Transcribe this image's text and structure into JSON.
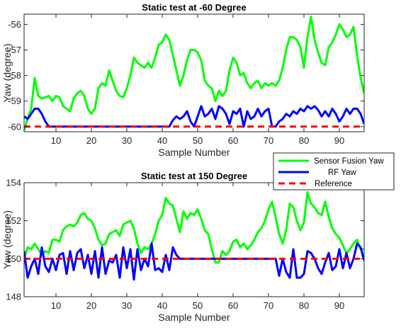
{
  "chart_data": [
    {
      "type": "line",
      "title": "Static test at -60 Degree",
      "xlabel": "Sample Number",
      "ylabel": "Yaw (degree)",
      "xlim": [
        1,
        97
      ],
      "ylim": [
        -60.2,
        -55.6
      ],
      "xticks": [
        10,
        20,
        30,
        40,
        50,
        60,
        70,
        80,
        90
      ],
      "yticks": [
        -60,
        -59,
        -58,
        -57,
        -56
      ],
      "grid": false,
      "series": [
        {
          "name": "Sensor Fusion Yaw",
          "color": "#00ff00",
          "x": [
            1,
            2,
            3,
            4,
            5,
            6,
            7,
            8,
            9,
            10,
            11,
            12,
            13,
            14,
            15,
            16,
            17,
            18,
            19,
            20,
            21,
            22,
            23,
            24,
            25,
            26,
            27,
            28,
            29,
            30,
            31,
            32,
            33,
            34,
            35,
            36,
            37,
            38,
            39,
            40,
            41,
            42,
            43,
            44,
            45,
            46,
            47,
            48,
            49,
            50,
            51,
            52,
            53,
            54,
            55,
            56,
            57,
            58,
            59,
            60,
            61,
            62,
            63,
            64,
            65,
            66,
            67,
            68,
            69,
            70,
            71,
            72,
            73,
            74,
            75,
            76,
            77,
            78,
            79,
            80,
            81,
            82,
            83,
            84,
            85,
            86,
            87,
            88,
            89,
            90,
            91,
            92,
            93,
            94,
            95,
            96,
            97
          ],
          "values": [
            -60.15,
            -59.7,
            -59.3,
            -58.1,
            -58.8,
            -58.9,
            -58.85,
            -58.8,
            -59.0,
            -58.8,
            -58.85,
            -59.2,
            -59.3,
            -59.4,
            -58.9,
            -58.7,
            -58.6,
            -58.8,
            -59.3,
            -59.5,
            -59.3,
            -58.5,
            -58.3,
            -58.4,
            -57.8,
            -58.2,
            -58.6,
            -58.8,
            -58.85,
            -58.5,
            -58.0,
            -57.3,
            -57.5,
            -57.6,
            -57.7,
            -57.5,
            -57.7,
            -57.3,
            -56.8,
            -56.7,
            -56.4,
            -56.6,
            -57.2,
            -57.8,
            -58.4,
            -58.0,
            -57.4,
            -57.0,
            -57.0,
            -57.1,
            -57.4,
            -58.2,
            -58.4,
            -58.5,
            -59.0,
            -58.6,
            -58.8,
            -58.6,
            -57.8,
            -57.3,
            -57.5,
            -58.0,
            -57.9,
            -58.3,
            -58.5,
            -58.3,
            -58.2,
            -58.5,
            -58.3,
            -58.4,
            -58.3,
            -58.4,
            -58.2,
            -57.7,
            -57.0,
            -56.5,
            -56.5,
            -56.6,
            -56.9,
            -57.7,
            -56.5,
            -55.7,
            -56.6,
            -57.1,
            -57.5,
            -57.6,
            -56.9,
            -56.7,
            -56.4,
            -56.0,
            -56.2,
            -56.5,
            -56.4,
            -56.1,
            -57.2,
            -58.1,
            -58.7
          ]
        },
        {
          "name": "RF Yaw",
          "color": "#0000ff",
          "x": [
            1,
            2,
            3,
            4,
            5,
            6,
            7,
            8,
            9,
            10,
            11,
            12,
            13,
            14,
            15,
            16,
            17,
            18,
            19,
            20,
            21,
            22,
            23,
            24,
            25,
            26,
            27,
            28,
            29,
            30,
            31,
            32,
            33,
            34,
            35,
            36,
            37,
            38,
            39,
            40,
            41,
            42,
            43,
            44,
            45,
            46,
            47,
            48,
            49,
            50,
            51,
            52,
            53,
            54,
            55,
            56,
            57,
            58,
            59,
            60,
            61,
            62,
            63,
            64,
            65,
            66,
            67,
            68,
            69,
            70,
            71,
            72,
            73,
            74,
            75,
            76,
            77,
            78,
            79,
            80,
            81,
            82,
            83,
            84,
            85,
            86,
            87,
            88,
            89,
            90,
            91,
            92,
            93,
            94,
            95,
            96,
            97
          ],
          "values": [
            -59.6,
            -59.7,
            -59.5,
            -59.3,
            -59.3,
            -59.5,
            -59.8,
            -60.0,
            -60.0,
            -60.0,
            -60.0,
            -60.0,
            -60.0,
            -60.0,
            -60.0,
            -60.0,
            -60.0,
            -60.0,
            -60.0,
            -60.0,
            -60.0,
            -60.0,
            -60.0,
            -60.0,
            -60.0,
            -60.0,
            -60.0,
            -60.0,
            -60.0,
            -60.0,
            -60.0,
            -60.0,
            -60.0,
            -60.0,
            -60.0,
            -60.0,
            -60.0,
            -60.0,
            -60.0,
            -60.0,
            -60.0,
            -60.0,
            -59.75,
            -59.6,
            -59.7,
            -59.6,
            -59.4,
            -59.8,
            -60.0,
            -59.6,
            -59.2,
            -59.6,
            -59.5,
            -59.3,
            -59.7,
            -59.2,
            -59.3,
            -59.5,
            -59.9,
            -59.4,
            -59.5,
            -59.3,
            -60.0,
            -59.4,
            -59.7,
            -59.6,
            -59.3,
            -59.6,
            -59.4,
            -59.3,
            -60.0,
            -60.0,
            -59.8,
            -59.7,
            -59.5,
            -59.6,
            -59.4,
            -59.5,
            -59.3,
            -59.4,
            -59.2,
            -59.3,
            -59.2,
            -59.35,
            -59.6,
            -59.4,
            -59.6,
            -59.3,
            -59.5,
            -59.8,
            -59.6,
            -59.3,
            -59.5,
            -59.3,
            -59.3,
            -59.5,
            -59.9
          ]
        },
        {
          "name": "Reference",
          "color": "#ff0000",
          "style": "dashed",
          "x": [
            1,
            97
          ],
          "values": [
            -60.0,
            -60.0
          ]
        }
      ]
    },
    {
      "type": "line",
      "title": "Static test at 150 Degree",
      "xlabel": "Sample Number",
      "ylabel": "Yaw (degree)",
      "xlim": [
        1,
        97
      ],
      "ylim": [
        148,
        154
      ],
      "xticks": [
        10,
        20,
        30,
        40,
        50,
        60,
        70,
        80,
        90
      ],
      "yticks": [
        148,
        150,
        152,
        154
      ],
      "grid": false,
      "series": [
        {
          "name": "Sensor Fusion Yaw",
          "color": "#00ff00",
          "x": [
            1,
            2,
            3,
            4,
            5,
            6,
            7,
            8,
            9,
            10,
            11,
            12,
            13,
            14,
            15,
            16,
            17,
            18,
            19,
            20,
            21,
            22,
            23,
            24,
            25,
            26,
            27,
            28,
            29,
            30,
            31,
            32,
            33,
            34,
            35,
            36,
            37,
            38,
            39,
            40,
            41,
            42,
            43,
            44,
            45,
            46,
            47,
            48,
            49,
            50,
            51,
            52,
            53,
            54,
            55,
            56,
            57,
            58,
            59,
            60,
            61,
            62,
            63,
            64,
            65,
            66,
            67,
            68,
            69,
            70,
            71,
            72,
            73,
            74,
            75,
            76,
            77,
            78,
            79,
            80,
            81,
            82,
            83,
            84,
            85,
            86,
            87,
            88,
            89,
            90,
            91,
            92,
            93,
            94,
            95,
            96,
            97
          ],
          "values": [
            150.0,
            150.6,
            150.5,
            150.8,
            150.5,
            150.2,
            150.4,
            150.3,
            151.0,
            151.0,
            150.9,
            151.5,
            151.7,
            151.8,
            151.7,
            151.9,
            152.3,
            152.4,
            152.1,
            152.0,
            151.6,
            151.0,
            150.7,
            150.8,
            151.3,
            151.4,
            151.5,
            151.2,
            151.8,
            151.9,
            152.0,
            151.6,
            150.8,
            150.3,
            150.6,
            150.5,
            150.8,
            151.3,
            152.0,
            152.3,
            153.2,
            152.9,
            152.8,
            152.1,
            151.4,
            152.5,
            152.1,
            152.4,
            152.3,
            152.6,
            152.1,
            151.5,
            151.3,
            150.5,
            149.8,
            149.8,
            150.4,
            150.2,
            150.4,
            150.9,
            151.0,
            150.6,
            150.8,
            150.5,
            150.7,
            151.0,
            151.4,
            151.6,
            152.0,
            152.6,
            153.0,
            152.2,
            151.3,
            150.8,
            151.5,
            152.9,
            152.7,
            152.0,
            151.5,
            151.9,
            153.5,
            152.9,
            152.7,
            152.4,
            152.3,
            153.0,
            152.2,
            151.6,
            151.3,
            151.1,
            150.7,
            150.3,
            150.5,
            150.8,
            151.0,
            150.5,
            150.5
          ]
        },
        {
          "name": "RF Yaw",
          "color": "#0000ff",
          "x": [
            1,
            2,
            3,
            4,
            5,
            6,
            7,
            8,
            9,
            10,
            11,
            12,
            13,
            14,
            15,
            16,
            17,
            18,
            19,
            20,
            21,
            22,
            23,
            24,
            25,
            26,
            27,
            28,
            29,
            30,
            31,
            32,
            33,
            34,
            35,
            36,
            37,
            38,
            39,
            40,
            41,
            42,
            43,
            44,
            45,
            46,
            47,
            48,
            49,
            50,
            51,
            52,
            53,
            54,
            55,
            56,
            57,
            58,
            59,
            60,
            61,
            62,
            63,
            64,
            65,
            66,
            67,
            68,
            69,
            70,
            71,
            72,
            73,
            74,
            75,
            76,
            77,
            78,
            79,
            80,
            81,
            82,
            83,
            84,
            85,
            86,
            87,
            88,
            89,
            90,
            91,
            92,
            93,
            94,
            95,
            96,
            97
          ],
          "values": [
            150.4,
            149.0,
            149.6,
            150.0,
            149.2,
            150.6,
            149.6,
            149.3,
            150.0,
            149.4,
            150.2,
            150.3,
            149.2,
            150.4,
            149.4,
            150.3,
            150.5,
            149.5,
            150.2,
            149.2,
            150.4,
            149.0,
            150.6,
            149.2,
            149.9,
            149.8,
            150.2,
            149.0,
            150.6,
            149.5,
            150.5,
            148.9,
            150.5,
            149.4,
            150.0,
            149.6,
            150.8,
            149.4,
            149.5,
            149.3,
            150.2,
            149.4,
            150.6,
            150.2,
            150.0,
            150.0,
            150.0,
            150.0,
            150.0,
            150.0,
            150.0,
            150.0,
            150.0,
            150.0,
            150.0,
            150.0,
            150.0,
            150.0,
            150.0,
            150.0,
            150.0,
            150.0,
            150.0,
            150.0,
            150.0,
            150.0,
            150.0,
            150.0,
            150.0,
            150.0,
            150.0,
            150.0,
            149.1,
            150.0,
            149.3,
            149.0,
            150.5,
            149.0,
            149.0,
            149.2,
            150.4,
            150.3,
            150.0,
            149.5,
            149.2,
            149.8,
            150.3,
            149.4,
            149.6,
            150.5,
            149.5,
            150.3,
            149.5,
            150.0,
            150.8,
            150.6,
            149.9
          ]
        },
        {
          "name": "Reference",
          "color": "#ff0000",
          "style": "dashed",
          "x": [
            1,
            97
          ],
          "values": [
            150.0,
            150.0
          ]
        }
      ]
    }
  ],
  "legend": {
    "placement": "between-plots-right",
    "entries": [
      {
        "label": "Sensor Fusion Yaw",
        "color": "#00ff00",
        "style": "solid"
      },
      {
        "label": "RF Yaw",
        "color": "#0000ff",
        "style": "solid"
      },
      {
        "label": "Reference",
        "color": "#ff0000",
        "style": "dashed"
      }
    ]
  }
}
